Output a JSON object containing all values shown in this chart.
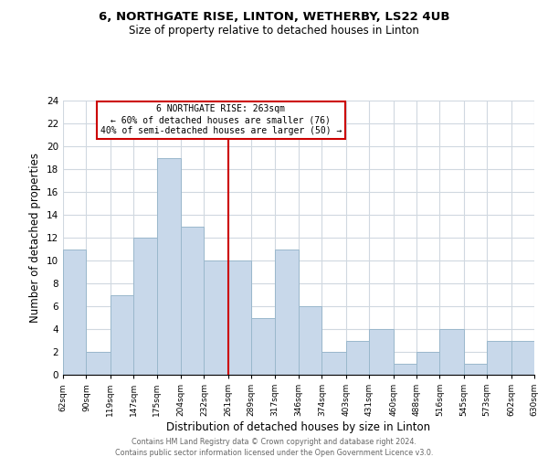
{
  "title": "6, NORTHGATE RISE, LINTON, WETHERBY, LS22 4UB",
  "subtitle": "Size of property relative to detached houses in Linton",
  "xlabel": "Distribution of detached houses by size in Linton",
  "ylabel": "Number of detached properties",
  "bar_color": "#c8d8ea",
  "bar_edge_color": "#9ab8cc",
  "bins": [
    62,
    90,
    119,
    147,
    175,
    204,
    232,
    261,
    289,
    317,
    346,
    374,
    403,
    431,
    460,
    488,
    516,
    545,
    573,
    602,
    630
  ],
  "counts": [
    11,
    2,
    7,
    12,
    19,
    13,
    10,
    10,
    5,
    11,
    6,
    2,
    3,
    4,
    1,
    2,
    4,
    1,
    3,
    3
  ],
  "tick_labels": [
    "62sqm",
    "90sqm",
    "119sqm",
    "147sqm",
    "175sqm",
    "204sqm",
    "232sqm",
    "261sqm",
    "289sqm",
    "317sqm",
    "346sqm",
    "374sqm",
    "403sqm",
    "431sqm",
    "460sqm",
    "488sqm",
    "516sqm",
    "545sqm",
    "573sqm",
    "602sqm",
    "630sqm"
  ],
  "property_line_x": 261,
  "annotation_title": "6 NORTHGATE RISE: 263sqm",
  "annotation_line1": "← 60% of detached houses are smaller (76)",
  "annotation_line2": "40% of semi-detached houses are larger (50) →",
  "annotation_box_color": "#ffffff",
  "annotation_box_edge_color": "#cc0000",
  "vline_color": "#cc0000",
  "ylim": [
    0,
    24
  ],
  "yticks": [
    0,
    2,
    4,
    6,
    8,
    10,
    12,
    14,
    16,
    18,
    20,
    22,
    24
  ],
  "footer1": "Contains HM Land Registry data © Crown copyright and database right 2024.",
  "footer2": "Contains public sector information licensed under the Open Government Licence v3.0.",
  "background_color": "#ffffff",
  "grid_color": "#d0d8e0"
}
